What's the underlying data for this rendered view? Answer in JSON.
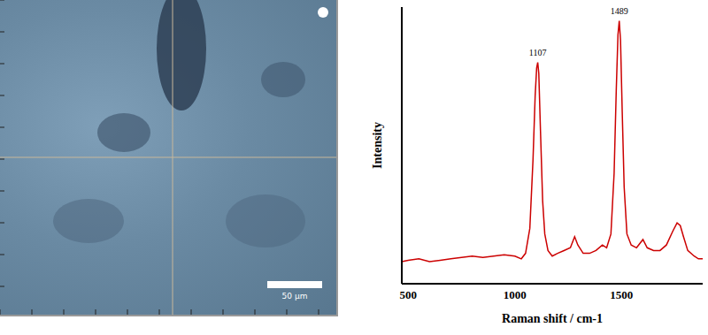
{
  "chart_data": {
    "type": "line",
    "x_label": "Raman shift / cm-1",
    "y_label": "Intensity",
    "x": [
      470,
      500,
      550,
      600,
      650,
      700,
      750,
      800,
      850,
      900,
      950,
      1000,
      1030,
      1050,
      1070,
      1085,
      1095,
      1102,
      1107,
      1112,
      1120,
      1130,
      1140,
      1155,
      1175,
      1200,
      1230,
      1260,
      1280,
      1295,
      1320,
      1350,
      1380,
      1410,
      1430,
      1450,
      1465,
      1475,
      1483,
      1489,
      1495,
      1503,
      1512,
      1525,
      1545,
      1570,
      1600,
      1620,
      1650,
      1680,
      1710,
      1740,
      1760,
      1775,
      1790,
      1810,
      1840,
      1860,
      1880
    ],
    "values": [
      8,
      8.5,
      9,
      8,
      8.5,
      9,
      9.5,
      10,
      9.5,
      10,
      10.5,
      10,
      9,
      11,
      20,
      45,
      68,
      78,
      80,
      76,
      55,
      30,
      18,
      12,
      10,
      11,
      12,
      13,
      17,
      14,
      11,
      11,
      12,
      14,
      13,
      18,
      40,
      70,
      90,
      95,
      88,
      62,
      35,
      18,
      14,
      13,
      16,
      13,
      12,
      12,
      14,
      19,
      22,
      21,
      17,
      12,
      10,
      9,
      9
    ],
    "color": "#cc0000",
    "xlim": [
      470,
      1880
    ],
    "xticks": [
      500,
      1000,
      1500
    ],
    "ylim": [
      0,
      100
    ],
    "tick_labels": "x",
    "annotations": [
      {
        "x": 1107,
        "text": "1107"
      },
      {
        "x": 1489,
        "text": "1489"
      }
    ]
  },
  "image": {
    "scale_bar": "50 µm"
  }
}
